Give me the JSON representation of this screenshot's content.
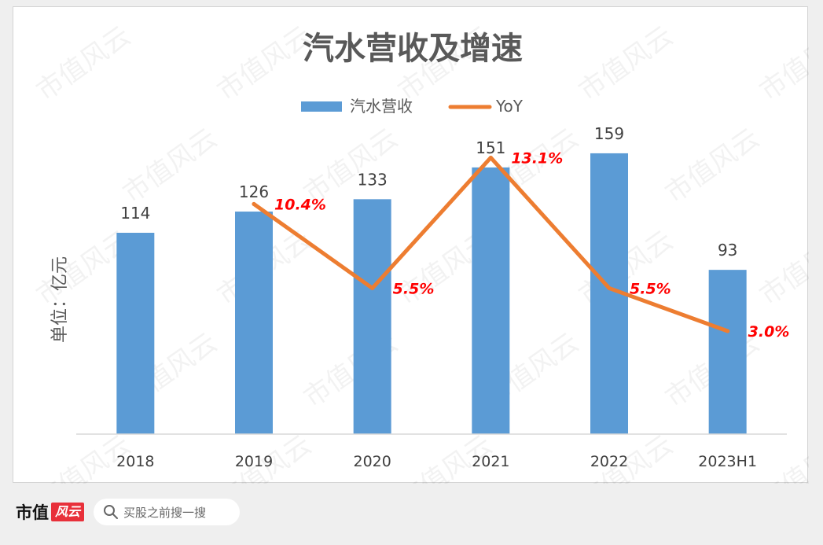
{
  "chart_data": {
    "type": "bar",
    "title": "汽水营收及增速",
    "ylabel": "单位：亿元",
    "categories": [
      "2018",
      "2019",
      "2020",
      "2021",
      "2022",
      "2023H1"
    ],
    "series": [
      {
        "name": "汽水营收",
        "type": "bar",
        "color": "#5b9bd5",
        "values": [
          114,
          126,
          133,
          151,
          159,
          93
        ],
        "labels": [
          "114",
          "126",
          "133",
          "151",
          "159",
          "93"
        ]
      },
      {
        "name": "YoY",
        "type": "line",
        "color": "#ed7d31",
        "values": [
          null,
          10.4,
          5.5,
          13.1,
          5.5,
          3.0
        ],
        "labels": [
          "",
          "10.4%",
          "5.5%",
          "13.1%",
          "5.5%",
          "3.0%"
        ]
      }
    ],
    "y_range": [
      0,
      175
    ],
    "y2_range": [
      -3,
      15
    ],
    "grid": false,
    "legend_position": "top-center",
    "line_label_color": "#ff0000"
  },
  "watermark": "市值风云",
  "footer": {
    "brand": "市值",
    "brand_logo": "风云",
    "search_placeholder": "买股之前搜一搜",
    "icons": [
      "search-icon"
    ]
  }
}
